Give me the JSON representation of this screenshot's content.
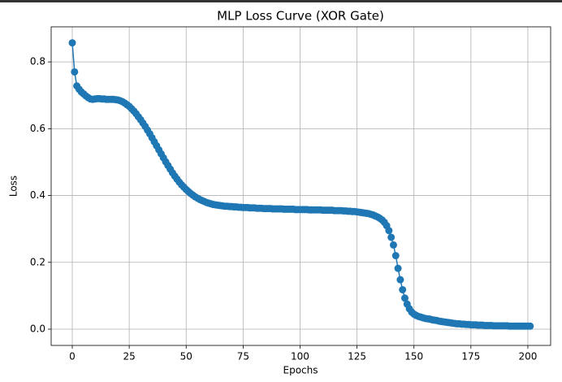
{
  "chart_data": {
    "type": "line",
    "title": "MLP Loss Curve (XOR Gate)",
    "x_label": "Epochs",
    "y_label": "Loss",
    "x": [
      0,
      1,
      2,
      3,
      4,
      5,
      6,
      7,
      8,
      9,
      10,
      11,
      12,
      13,
      14,
      15,
      16,
      17,
      18,
      19,
      20,
      21,
      22,
      23,
      24,
      25,
      26,
      27,
      28,
      29,
      30,
      31,
      32,
      33,
      34,
      35,
      36,
      37,
      38,
      39,
      40,
      41,
      42,
      43,
      44,
      45,
      46,
      47,
      48,
      49,
      50,
      51,
      52,
      53,
      54,
      55,
      56,
      57,
      58,
      59,
      60,
      61,
      62,
      63,
      64,
      65,
      66,
      67,
      68,
      69,
      70,
      71,
      72,
      73,
      74,
      75,
      76,
      77,
      78,
      79,
      80,
      81,
      82,
      83,
      84,
      85,
      86,
      87,
      88,
      89,
      90,
      91,
      92,
      93,
      94,
      95,
      96,
      97,
      98,
      99,
      100,
      101,
      102,
      103,
      104,
      105,
      106,
      107,
      108,
      109,
      110,
      111,
      112,
      113,
      114,
      115,
      116,
      117,
      118,
      119,
      120,
      121,
      122,
      123,
      124,
      125,
      126,
      127,
      128,
      129,
      130,
      131,
      132,
      133,
      134,
      135,
      136,
      137,
      138,
      139,
      140,
      141,
      142,
      143,
      144,
      145,
      146,
      147,
      148,
      149,
      150,
      151,
      152,
      153,
      154,
      155,
      156,
      157,
      158,
      159,
      160,
      161,
      162,
      163,
      164,
      165,
      166,
      167,
      168,
      169,
      170,
      171,
      172,
      173,
      174,
      175,
      176,
      177,
      178,
      179,
      180,
      181,
      182,
      183,
      184,
      185,
      186,
      187,
      188,
      189,
      190,
      191,
      192,
      193,
      194,
      195,
      196,
      197,
      198,
      199,
      200,
      201
    ],
    "series": [
      {
        "color": "#1f77b4",
        "values": [
          0.857,
          0.77,
          0.728,
          0.718,
          0.71,
          0.704,
          0.698,
          0.693,
          0.689,
          0.688,
          0.689,
          0.69,
          0.69,
          0.689,
          0.689,
          0.688,
          0.688,
          0.688,
          0.688,
          0.687,
          0.686,
          0.684,
          0.681,
          0.677,
          0.672,
          0.667,
          0.66,
          0.653,
          0.645,
          0.636,
          0.627,
          0.617,
          0.607,
          0.596,
          0.585,
          0.573,
          0.561,
          0.549,
          0.537,
          0.525,
          0.513,
          0.501,
          0.49,
          0.479,
          0.468,
          0.458,
          0.449,
          0.44,
          0.432,
          0.425,
          0.418,
          0.412,
          0.406,
          0.401,
          0.396,
          0.392,
          0.388,
          0.385,
          0.382,
          0.379,
          0.377,
          0.375,
          0.373,
          0.372,
          0.371,
          0.37,
          0.369,
          0.368,
          0.368,
          0.367,
          0.367,
          0.366,
          0.366,
          0.365,
          0.365,
          0.364,
          0.364,
          0.364,
          0.363,
          0.363,
          0.363,
          0.362,
          0.362,
          0.362,
          0.361,
          0.361,
          0.361,
          0.361,
          0.36,
          0.36,
          0.36,
          0.36,
          0.36,
          0.359,
          0.359,
          0.359,
          0.359,
          0.359,
          0.358,
          0.358,
          0.358,
          0.358,
          0.358,
          0.358,
          0.357,
          0.357,
          0.357,
          0.357,
          0.357,
          0.357,
          0.356,
          0.356,
          0.356,
          0.356,
          0.356,
          0.355,
          0.355,
          0.355,
          0.355,
          0.354,
          0.354,
          0.353,
          0.353,
          0.352,
          0.352,
          0.351,
          0.35,
          0.349,
          0.348,
          0.347,
          0.346,
          0.344,
          0.342,
          0.339,
          0.336,
          0.332,
          0.327,
          0.32,
          0.31,
          0.295,
          0.275,
          0.252,
          0.22,
          0.182,
          0.148,
          0.118,
          0.093,
          0.075,
          0.061,
          0.051,
          0.045,
          0.041,
          0.038,
          0.036,
          0.034,
          0.032,
          0.031,
          0.03,
          0.028,
          0.027,
          0.026,
          0.024,
          0.023,
          0.022,
          0.021,
          0.02,
          0.019,
          0.018,
          0.017,
          0.016,
          0.016,
          0.015,
          0.015,
          0.014,
          0.014,
          0.013,
          0.013,
          0.013,
          0.012,
          0.012,
          0.012,
          0.011,
          0.011,
          0.011,
          0.011,
          0.01,
          0.01,
          0.01,
          0.01,
          0.01,
          0.01,
          0.01,
          0.009,
          0.009,
          0.009,
          0.009,
          0.009,
          0.009,
          0.009,
          0.009,
          0.009,
          0.009
        ]
      }
    ],
    "xlim": [
      -9.27,
      210
    ],
    "ylim": [
      -0.0487,
      0.905
    ],
    "xticks": [
      0,
      25,
      50,
      75,
      100,
      125,
      150,
      175,
      200
    ],
    "yticks": [
      {
        "value": 0,
        "label": "0.0"
      },
      0.2,
      0.4,
      0.6,
      0.8
    ],
    "grid": true,
    "markers": true
  }
}
